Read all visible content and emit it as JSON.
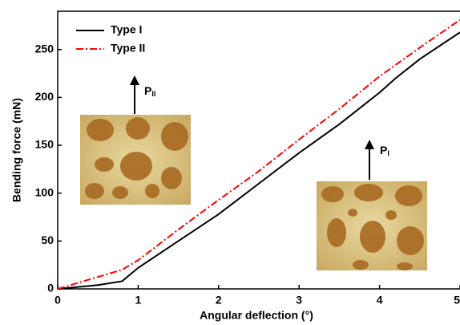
{
  "chart_data": {
    "type": "line",
    "xlabel": "Angular deflection (°)",
    "ylabel": "Bending force (mN)",
    "xlim": [
      0,
      5
    ],
    "ylim": [
      0,
      290
    ],
    "xticks": [
      0,
      1,
      2,
      3,
      4,
      5
    ],
    "yticks": [
      0,
      50,
      100,
      150,
      200,
      250
    ],
    "legend": "upper left",
    "series": [
      {
        "name": "Type I",
        "color": "#000000",
        "dash": "solid",
        "x": [
          0,
          0.5,
          0.8,
          1,
          1.5,
          2,
          2.5,
          3,
          3.5,
          4,
          4.2,
          4.5,
          5
        ],
        "values": [
          0,
          4,
          8,
          22,
          50,
          78,
          110,
          142,
          172,
          205,
          220,
          240,
          268
        ]
      },
      {
        "name": "Type II",
        "color": "#ff0000",
        "dash": "dashdot",
        "x": [
          0,
          0.8,
          1,
          1.5,
          2,
          2.5,
          3,
          3.5,
          4,
          4.5,
          5
        ],
        "values": [
          0,
          20,
          30,
          62,
          93,
          123,
          156,
          188,
          222,
          252,
          281
        ]
      }
    ],
    "annotations": [
      {
        "text": "P",
        "sub": "II"
      },
      {
        "text": "P",
        "sub": "I"
      }
    ]
  }
}
